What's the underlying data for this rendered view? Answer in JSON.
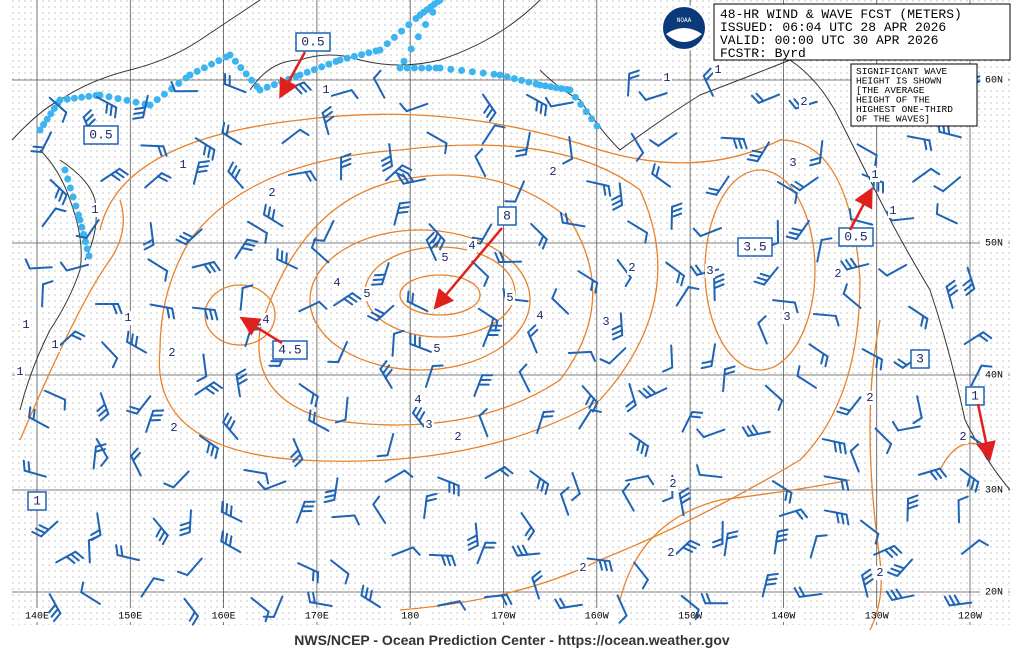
{
  "header": {
    "lines": [
      "48-HR WIND & WAVE FCST (METERS)",
      "ISSUED: 06:04 UTC 28 APR 2026",
      "VALID:  00:00 UTC 30 APR 2026",
      "FCSTR:  Byrd"
    ],
    "logo": "NOAA"
  },
  "note": {
    "lines": [
      "SIGNIFICANT WAVE",
      "HEIGHT IS SHOWN",
      "[THE AVERAGE",
      "HEIGHT OF THE",
      "HIGHEST ONE-THIRD",
      "OF THE WAVES]"
    ]
  },
  "longitudes": [
    "140E",
    "150E",
    "160E",
    "170E",
    "180",
    "170W",
    "160W",
    "150W",
    "140W",
    "130W",
    "120W"
  ],
  "latitudes": [
    "60N",
    "50N",
    "40N",
    "30N",
    "20N"
  ],
  "boxed_labels": [
    "0.5",
    "0.5",
    "8",
    "3.5",
    "0.5",
    "4.5",
    "3",
    "1",
    "1"
  ],
  "contour_labels": [
    "1",
    "1",
    "1",
    "2",
    "1",
    "1",
    "1",
    "1",
    "2",
    "4",
    "4",
    "5",
    "5",
    "4",
    "5",
    "4",
    "5",
    "4",
    "3",
    "2",
    "2",
    "3",
    "2",
    "2",
    "3",
    "3",
    "3",
    "2",
    "1",
    "1",
    "2",
    "1",
    "1",
    "2",
    "2",
    "2",
    "2",
    "2",
    "2"
  ],
  "footer": "NWS/NCEP - Ocean Prediction Center - https://ocean.weather.gov"
}
